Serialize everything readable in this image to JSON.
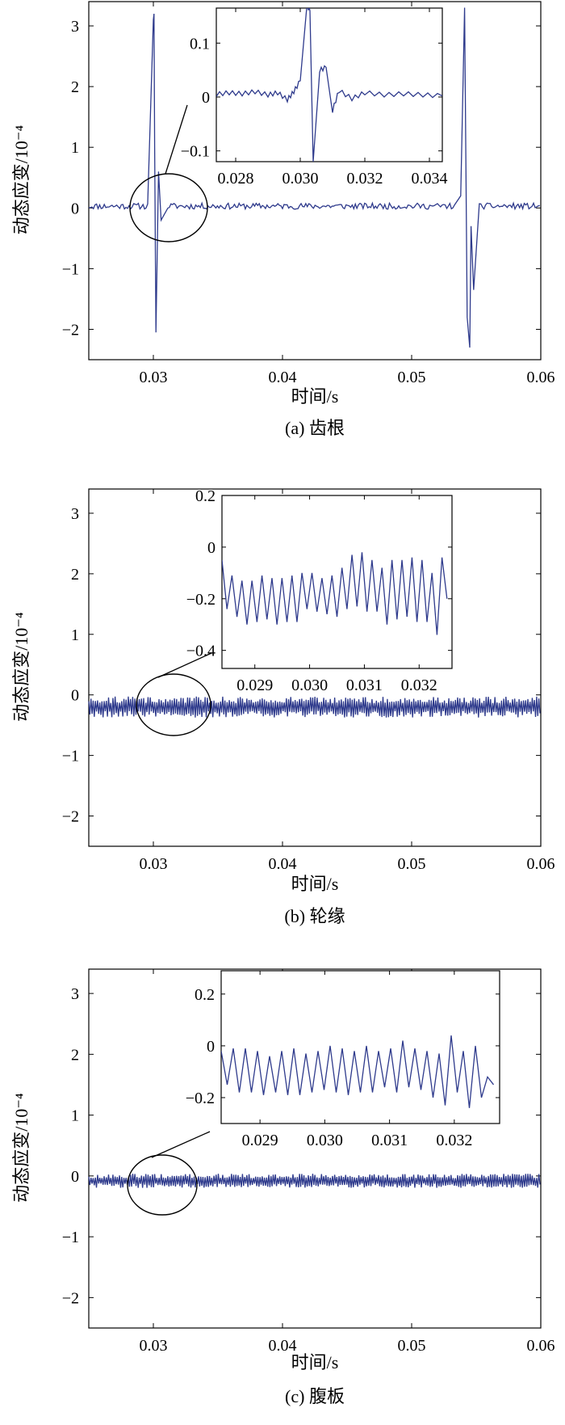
{
  "chart_data": [
    {
      "type": "line",
      "caption": "(a) 齿根",
      "xlabel": "时间/s",
      "ylabel": "动态应变/10⁻⁴",
      "xlim": [
        0.025,
        0.06
      ],
      "ylim": [
        -2.5,
        3.4
      ],
      "x_ticks": [
        "0.03",
        "0.04",
        "0.05",
        "0.06"
      ],
      "y_ticks": [
        "3",
        "2",
        "1",
        "0",
        "−1",
        "−2"
      ],
      "grid": false,
      "series": [
        {
          "color": "#2e3a8c",
          "description_points": {
            "x": [
              0.025,
              0.029,
              0.0298,
              0.03,
              0.03005,
              0.0301,
              0.0302,
              0.0304,
              0.0306,
              0.031,
              0.032,
              0.034,
              0.04,
              0.05,
              0.0525,
              0.0538,
              0.0541,
              0.0543,
              0.0545,
              0.0546,
              0.0548,
              0.055,
              0.06
            ],
            "y": [
              0.05,
              0.03,
              0.1,
              3.1,
              3.2,
              1.0,
              -2.05,
              0.6,
              -0.2,
              0.05,
              0.02,
              0.03,
              0.02,
              0.02,
              0.0,
              0.2,
              3.3,
              -1.8,
              -2.3,
              -0.3,
              -1.35,
              0.05,
              0.02
            ]
          }
        }
      ],
      "inset": {
        "xlim": [
          0.0274,
          0.0344
        ],
        "ylim": [
          -0.12,
          0.165
        ],
        "x_ticks": [
          "0.028",
          "0.030",
          "0.032",
          "0.034"
        ],
        "y_ticks": [
          "0.1",
          "0",
          "−0.1"
        ],
        "series_x": [
          0.0274,
          0.0278,
          0.0282,
          0.0286,
          0.029,
          0.0293,
          0.0296,
          0.0298,
          0.03,
          0.0302,
          0.0303,
          0.0304,
          0.0306,
          0.0308,
          0.031,
          0.0312,
          0.0316,
          0.032,
          0.0326,
          0.0332,
          0.0338,
          0.0344
        ],
        "series_y": [
          0.005,
          0.008,
          0.006,
          0.01,
          0.004,
          0.008,
          -0.005,
          0.01,
          0.03,
          0.17,
          0.16,
          -0.12,
          0.05,
          0.055,
          -0.025,
          0.012,
          -0.003,
          0.008,
          0.004,
          0.006,
          0.004,
          0.002
        ]
      }
    },
    {
      "type": "line",
      "caption": "(b) 轮缘",
      "xlabel": "时间/s",
      "ylabel": "动态应变/10⁻⁴",
      "xlim": [
        0.025,
        0.06
      ],
      "ylim": [
        -2.5,
        3.4
      ],
      "x_ticks": [
        "0.03",
        "0.04",
        "0.05",
        "0.06"
      ],
      "y_ticks": [
        "3",
        "2",
        "1",
        "0",
        "−1",
        "−2"
      ],
      "grid": false,
      "series": [
        {
          "color": "#2e3a8c",
          "mean": -0.2,
          "amplitude": 0.12
        }
      ],
      "inset": {
        "xlim": [
          0.0284,
          0.0326
        ],
        "ylim": [
          -0.47,
          0.2
        ],
        "x_ticks": [
          "0.029",
          "0.030",
          "0.031",
          "0.032"
        ],
        "y_ticks": [
          "0.2",
          "0",
          "−0.2",
          "−0.4"
        ],
        "peaks": [
          -0.05,
          -0.11,
          -0.13,
          -0.13,
          -0.11,
          -0.12,
          -0.12,
          -0.11,
          -0.1,
          -0.1,
          -0.12,
          -0.11,
          -0.08,
          -0.03,
          -0.02,
          -0.05,
          -0.08,
          -0.05,
          -0.05,
          -0.04,
          -0.05,
          -0.1,
          -0.04
        ],
        "troughs": [
          -0.24,
          -0.27,
          -0.3,
          -0.29,
          -0.28,
          -0.3,
          -0.29,
          -0.29,
          -0.24,
          -0.25,
          -0.26,
          -0.27,
          -0.24,
          -0.23,
          -0.25,
          -0.25,
          -0.3,
          -0.28,
          -0.27,
          -0.29,
          -0.29,
          -0.34,
          -0.2
        ]
      }
    },
    {
      "type": "line",
      "caption": "(c) 腹板",
      "xlabel": "时间/s",
      "ylabel": "动态应变/10⁻⁴",
      "xlim": [
        0.025,
        0.06
      ],
      "ylim": [
        -2.5,
        3.4
      ],
      "x_ticks": [
        "0.03",
        "0.04",
        "0.05",
        "0.06"
      ],
      "y_ticks": [
        "3",
        "2",
        "1",
        "0",
        "−1",
        "−2"
      ],
      "grid": false,
      "series": [
        {
          "color": "#2e3a8c",
          "mean": -0.08,
          "amplitude": 0.08
        }
      ],
      "inset": {
        "xlim": [
          0.0284,
          0.0327
        ],
        "ylim": [
          -0.3,
          0.29
        ],
        "x_ticks": [
          "0.029",
          "0.030",
          "0.031",
          "0.032"
        ],
        "y_ticks": [
          "0.2",
          "0",
          "−0.2"
        ],
        "peaks": [
          -0.02,
          -0.01,
          -0.01,
          -0.02,
          -0.04,
          -0.02,
          -0.01,
          -0.03,
          -0.02,
          0.0,
          -0.01,
          -0.02,
          0.0,
          -0.02,
          -0.01,
          0.02,
          -0.01,
          -0.02,
          -0.03,
          0.04,
          -0.02,
          0.0,
          -0.12
        ],
        "troughs": [
          -0.15,
          -0.18,
          -0.18,
          -0.19,
          -0.18,
          -0.19,
          -0.19,
          -0.18,
          -0.17,
          -0.18,
          -0.19,
          -0.18,
          -0.18,
          -0.16,
          -0.18,
          -0.16,
          -0.17,
          -0.2,
          -0.23,
          -0.18,
          -0.24,
          -0.2,
          -0.15
        ]
      }
    }
  ]
}
